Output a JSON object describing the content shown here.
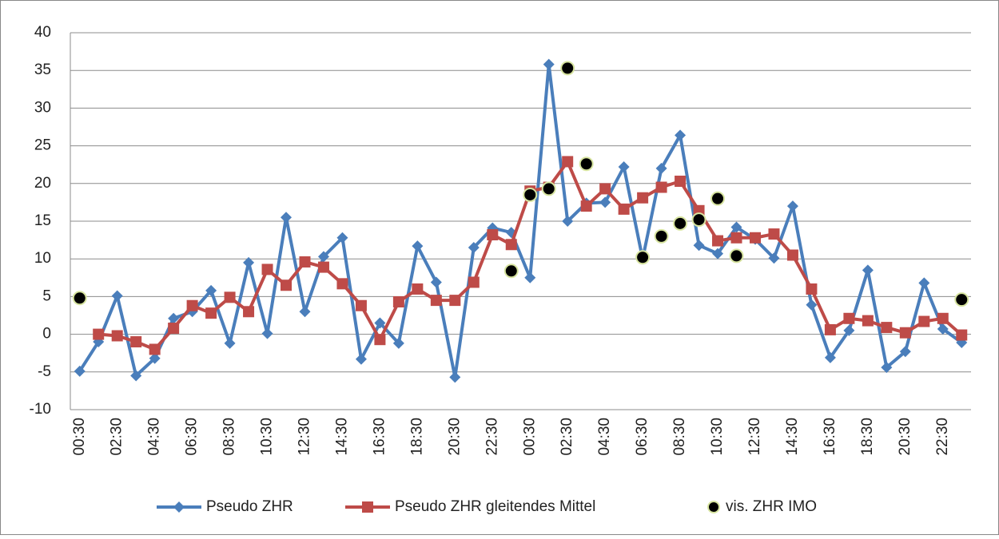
{
  "chart_data": {
    "type": "line",
    "categories": [
      "00:30",
      null,
      "02:30",
      null,
      "04:30",
      null,
      "06:30",
      null,
      "08:30",
      null,
      "10:30",
      null,
      "12:30",
      null,
      "14:30",
      null,
      "16:30",
      null,
      "18:30",
      null,
      "20:30",
      null,
      "22:30",
      null,
      "00:30",
      null,
      "02:30",
      null,
      "04:30",
      null,
      "06:30",
      null,
      "08:30",
      null,
      "10:30",
      null,
      "12:30",
      null,
      "14:30",
      null,
      "16:30",
      null,
      "18:30",
      null,
      "20:30",
      null,
      "22:30",
      null
    ],
    "series": [
      {
        "name": "Pseudo ZHR",
        "color": "#4a7ebb",
        "marker": "diamond",
        "values": [
          -4.9,
          -1,
          5.1,
          -5.5,
          -3.2,
          2.1,
          3,
          5.8,
          -1.2,
          9.5,
          0.1,
          15.5,
          3,
          10.3,
          12.8,
          -3.3,
          1.5,
          -1.2,
          11.7,
          6.9,
          -5.7,
          11.5,
          14.1,
          13.5,
          7.5,
          35.8,
          15,
          17.4,
          17.5,
          22.2,
          10,
          22,
          26.4,
          11.8,
          10.7,
          14.2,
          12.6,
          10.1,
          17,
          3.9,
          -3.1,
          0.5,
          8.5,
          -4.4,
          -2.3,
          6.8,
          0.7,
          -1.1
        ]
      },
      {
        "name": "Pseudo ZHR gleitendes Mittel",
        "color": "#be4b48",
        "marker": "square",
        "values": [
          null,
          0,
          -0.2,
          -1,
          -2,
          0.8,
          3.8,
          2.8,
          4.9,
          3,
          8.6,
          6.5,
          9.6,
          8.9,
          6.7,
          3.8,
          -0.7,
          4.3,
          6,
          4.5,
          4.5,
          6.9,
          13.2,
          11.9,
          19,
          19.5,
          22.9,
          17,
          19.3,
          16.6,
          18.1,
          19.5,
          20.3,
          16.4,
          12.4,
          12.8,
          12.8,
          13.3,
          10.5,
          6,
          0.6,
          2.1,
          1.8,
          0.9,
          0.2,
          1.7,
          2.1,
          -0.1
        ]
      },
      {
        "name": "vis. ZHR IMO",
        "color": "#000000",
        "marker": "circle",
        "line": false,
        "values": [
          4.8,
          null,
          null,
          null,
          null,
          null,
          null,
          null,
          null,
          null,
          null,
          null,
          null,
          null,
          null,
          null,
          null,
          null,
          null,
          null,
          null,
          null,
          null,
          8.4,
          18.5,
          19.3,
          35.3,
          22.6,
          null,
          null,
          10.2,
          13,
          14.7,
          15.2,
          18,
          10.4,
          null,
          null,
          null,
          null,
          null,
          null,
          null,
          null,
          null,
          null,
          null,
          4.6
        ]
      }
    ],
    "ylim": [
      -10,
      40
    ],
    "yticks": [
      -10,
      -5,
      0,
      5,
      10,
      15,
      20,
      25,
      30,
      35,
      40
    ],
    "grid": true,
    "legend": "bottom"
  }
}
